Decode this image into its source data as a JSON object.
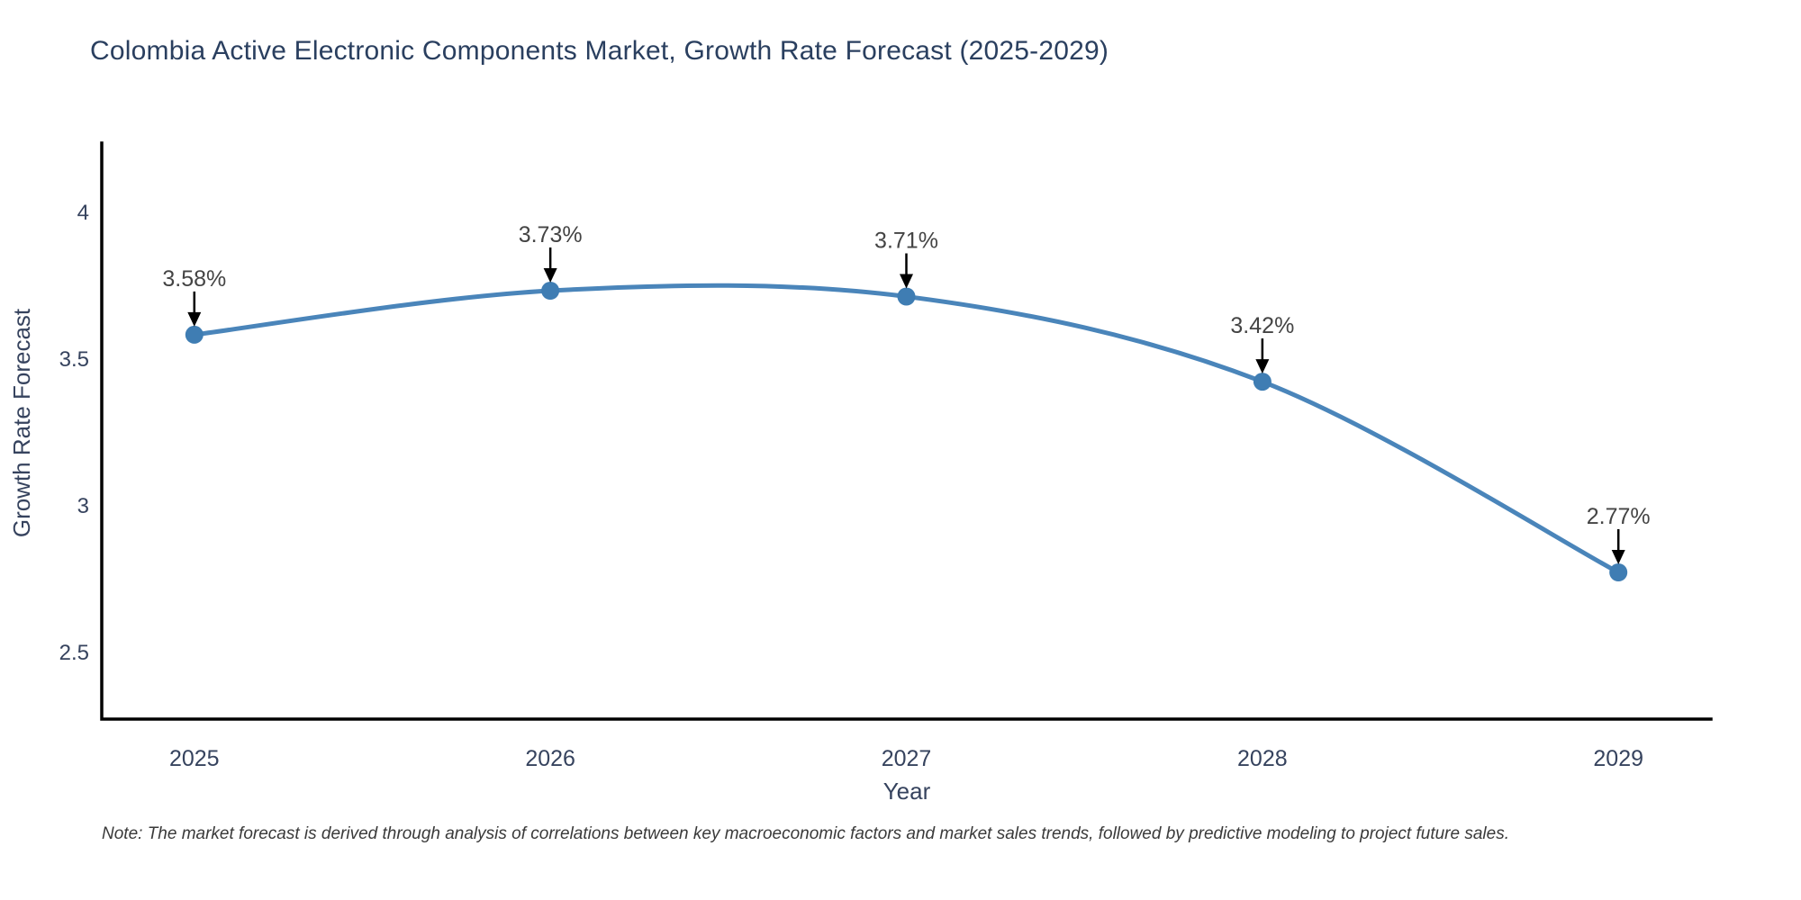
{
  "chart_data": {
    "type": "line",
    "title": "Colombia Active Electronic Components Market, Growth Rate Forecast (2025-2029)",
    "xlabel": "Year",
    "ylabel": "Growth Rate Forecast",
    "x": [
      2025,
      2026,
      2027,
      2028,
      2029
    ],
    "values": [
      3.58,
      3.73,
      3.71,
      3.42,
      2.77
    ],
    "point_labels": [
      "3.58%",
      "3.73%",
      "3.71%",
      "3.42%",
      "2.77%"
    ],
    "x_ticks": [
      {
        "label": "2025",
        "value": 2025
      },
      {
        "label": "2026",
        "value": 2026
      },
      {
        "label": "2027",
        "value": 2027
      },
      {
        "label": "2028",
        "value": 2028
      },
      {
        "label": "2029",
        "value": 2029
      }
    ],
    "y_ticks": [
      {
        "label": "4",
        "value": 4
      },
      {
        "label": "3.5",
        "value": 3.5
      },
      {
        "label": "3",
        "value": 3
      },
      {
        "label": "2.5",
        "value": 2.5
      }
    ],
    "xlim": [
      2024.74,
      2029.26
    ],
    "ylim": [
      2.27,
      4.233
    ],
    "grid": false,
    "line_shape": "spline",
    "legend": "none",
    "colors": {
      "line": "#4a85ba",
      "marker": "#3f7db3",
      "axis": "#000000",
      "arrow": "#000000",
      "annotation_text": "#444444",
      "title_text": "#2a3f5f",
      "tick_text": "#36435e",
      "axis_title_text": "#36435e",
      "note_text": "#3a3a3a"
    }
  },
  "note": "Note: The market forecast is derived through analysis of correlations between key macroeconomic factors and market sales trends, followed by predictive modeling to project future sales."
}
